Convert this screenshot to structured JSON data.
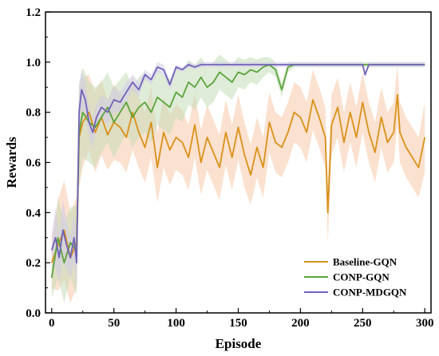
{
  "chart_data": {
    "type": "line",
    "title": "",
    "xlabel": "Episode",
    "ylabel": "Rewards",
    "xlim": [
      -5,
      305
    ],
    "ylim": [
      0.0,
      1.2
    ],
    "xticks": [
      0,
      50,
      100,
      150,
      200,
      250,
      300
    ],
    "yticks": [
      0.0,
      0.2,
      0.4,
      0.6,
      0.8,
      1.0,
      1.2
    ],
    "xtick_labels": [
      "0",
      "50",
      "100",
      "150",
      "200",
      "250",
      "300"
    ],
    "ytick_labels": [
      "0.0",
      "0.2",
      "0.4",
      "0.6",
      "0.8",
      "1.0",
      "1.2"
    ],
    "grid": false,
    "legend_position": "bottom-right",
    "series": [
      {
        "name": "Baseline-GQN",
        "color": "#D9911A",
        "band_color": "#F8C9A8",
        "x": [
          0,
          5,
          10,
          15,
          20,
          22,
          25,
          30,
          35,
          40,
          45,
          50,
          55,
          60,
          65,
          70,
          75,
          80,
          85,
          90,
          95,
          100,
          105,
          110,
          115,
          120,
          125,
          130,
          135,
          140,
          145,
          150,
          155,
          160,
          165,
          170,
          175,
          180,
          185,
          190,
          195,
          200,
          205,
          210,
          215,
          220,
          222,
          225,
          230,
          235,
          240,
          245,
          250,
          255,
          260,
          265,
          270,
          275,
          278,
          280,
          285,
          290,
          295,
          300
        ],
        "y": [
          0.2,
          0.27,
          0.33,
          0.22,
          0.28,
          0.7,
          0.76,
          0.8,
          0.72,
          0.78,
          0.71,
          0.76,
          0.74,
          0.7,
          0.8,
          0.72,
          0.66,
          0.76,
          0.58,
          0.72,
          0.65,
          0.7,
          0.68,
          0.62,
          0.75,
          0.6,
          0.7,
          0.64,
          0.58,
          0.72,
          0.62,
          0.74,
          0.63,
          0.55,
          0.66,
          0.58,
          0.76,
          0.68,
          0.66,
          0.72,
          0.8,
          0.78,
          0.72,
          0.85,
          0.78,
          0.7,
          0.4,
          0.75,
          0.82,
          0.68,
          0.8,
          0.7,
          0.84,
          0.72,
          0.64,
          0.78,
          0.68,
          0.72,
          0.87,
          0.72,
          0.66,
          0.62,
          0.58,
          0.7
        ],
        "band": [
          0.1,
          0.18,
          0.2,
          0.18,
          0.18,
          0.2,
          0.18,
          0.15,
          0.16,
          0.15,
          0.14,
          0.15,
          0.14,
          0.14,
          0.15,
          0.14,
          0.14,
          0.14,
          0.14,
          0.14,
          0.14,
          0.13,
          0.13,
          0.13,
          0.13,
          0.13,
          0.13,
          0.13,
          0.13,
          0.13,
          0.13,
          0.13,
          0.13,
          0.12,
          0.12,
          0.12,
          0.12,
          0.12,
          0.12,
          0.12,
          0.12,
          0.12,
          0.12,
          0.12,
          0.12,
          0.12,
          0.12,
          0.12,
          0.12,
          0.12,
          0.12,
          0.12,
          0.12,
          0.12,
          0.12,
          0.12,
          0.12,
          0.12,
          0.12,
          0.12,
          0.12,
          0.12,
          0.12,
          0.14
        ]
      },
      {
        "name": "CONP-GQN",
        "color": "#5BA33B",
        "band_color": "#C5DDB8",
        "x": [
          0,
          5,
          10,
          15,
          20,
          22,
          25,
          30,
          35,
          40,
          45,
          50,
          55,
          60,
          65,
          70,
          75,
          80,
          85,
          90,
          95,
          100,
          105,
          110,
          115,
          120,
          125,
          130,
          135,
          140,
          145,
          150,
          155,
          160,
          165,
          170,
          175,
          180,
          185,
          190,
          195,
          200,
          210,
          220,
          230,
          240,
          250,
          260,
          270,
          280,
          290,
          300
        ],
        "y": [
          0.14,
          0.3,
          0.2,
          0.28,
          0.25,
          0.72,
          0.8,
          0.76,
          0.74,
          0.78,
          0.82,
          0.76,
          0.8,
          0.84,
          0.78,
          0.82,
          0.84,
          0.8,
          0.86,
          0.84,
          0.82,
          0.88,
          0.86,
          0.92,
          0.9,
          0.94,
          0.9,
          0.92,
          0.96,
          0.94,
          0.92,
          0.96,
          0.95,
          0.97,
          0.96,
          0.98,
          0.99,
          0.97,
          0.89,
          0.98,
          0.99,
          0.99,
          0.99,
          0.99,
          0.99,
          0.99,
          0.99,
          0.99,
          0.99,
          0.99,
          0.99,
          0.99
        ],
        "band": [
          0.08,
          0.16,
          0.16,
          0.14,
          0.18,
          0.2,
          0.18,
          0.16,
          0.16,
          0.14,
          0.14,
          0.14,
          0.13,
          0.12,
          0.12,
          0.12,
          0.12,
          0.12,
          0.11,
          0.11,
          0.11,
          0.1,
          0.1,
          0.09,
          0.09,
          0.08,
          0.08,
          0.08,
          0.07,
          0.07,
          0.07,
          0.06,
          0.06,
          0.05,
          0.05,
          0.04,
          0.03,
          0.03,
          0.03,
          0.02,
          0.01,
          0.01,
          0.01,
          0.01,
          0.01,
          0.01,
          0.01,
          0.01,
          0.01,
          0.01,
          0.01,
          0.01
        ]
      },
      {
        "name": "CONP-MDGQN",
        "color": "#7162B8",
        "band_color": "#D2CCEA",
        "x": [
          0,
          3,
          6,
          9,
          12,
          15,
          18,
          20,
          22,
          24,
          27,
          30,
          33,
          36,
          40,
          45,
          50,
          55,
          60,
          65,
          70,
          75,
          80,
          85,
          90,
          95,
          100,
          105,
          110,
          115,
          120,
          130,
          140,
          150,
          160,
          170,
          180,
          200,
          220,
          240,
          250,
          252,
          255,
          260,
          270,
          280,
          290,
          300
        ],
        "y": [
          0.25,
          0.3,
          0.22,
          0.33,
          0.27,
          0.22,
          0.3,
          0.2,
          0.8,
          0.89,
          0.85,
          0.76,
          0.72,
          0.78,
          0.82,
          0.8,
          0.85,
          0.84,
          0.88,
          0.92,
          0.89,
          0.95,
          0.93,
          0.98,
          0.97,
          0.91,
          0.98,
          0.97,
          0.99,
          0.98,
          0.99,
          0.99,
          0.99,
          0.99,
          0.99,
          0.99,
          0.99,
          0.99,
          0.99,
          0.99,
          0.99,
          0.95,
          0.99,
          0.99,
          0.99,
          0.99,
          0.99,
          0.99
        ],
        "band": [
          0.06,
          0.12,
          0.1,
          0.12,
          0.1,
          0.08,
          0.1,
          0.1,
          0.1,
          0.08,
          0.07,
          0.06,
          0.06,
          0.05,
          0.05,
          0.05,
          0.05,
          0.04,
          0.04,
          0.03,
          0.03,
          0.02,
          0.02,
          0.02,
          0.02,
          0.02,
          0.01,
          0.01,
          0.01,
          0.01,
          0.01,
          0.01,
          0.01,
          0.01,
          0.01,
          0.01,
          0.01,
          0.01,
          0.01,
          0.01,
          0.01,
          0.01,
          0.01,
          0.01,
          0.01,
          0.01,
          0.01,
          0.01
        ]
      }
    ]
  }
}
